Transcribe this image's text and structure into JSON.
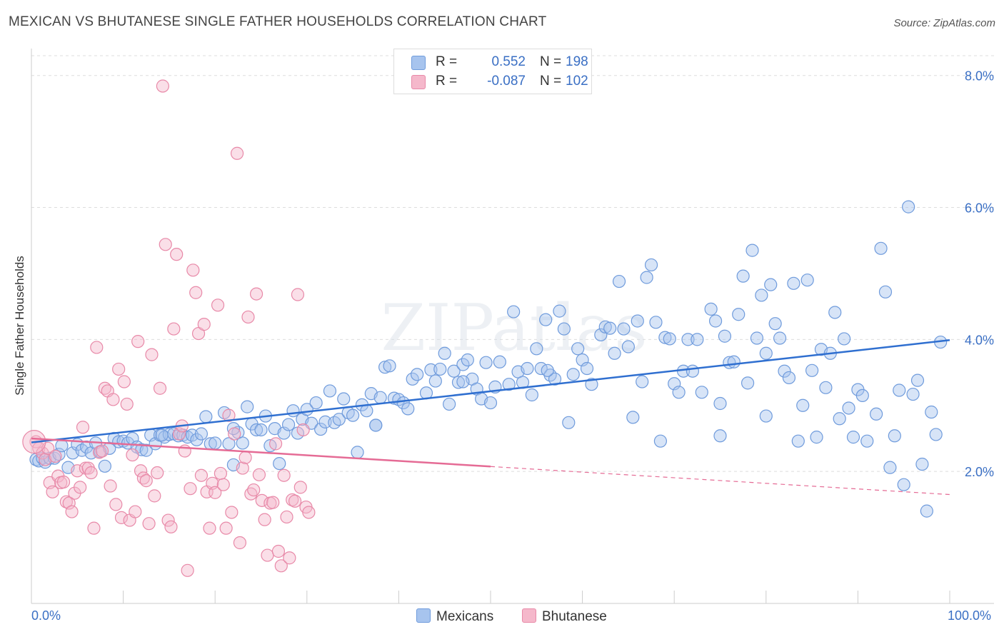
{
  "header": {
    "title": "MEXICAN VS BHUTANESE SINGLE FATHER HOUSEHOLDS CORRELATION CHART",
    "source": "Source: ZipAtlas.com"
  },
  "legend_top": [
    {
      "r_label": "R =",
      "r_value": "0.552",
      "n_label": "N =",
      "n_value": "198",
      "color": "#a7c4ee"
    },
    {
      "r_label": "R =",
      "r_value": "-0.087",
      "n_label": "N =",
      "n_value": "102",
      "color": "#f5b8cb"
    }
  ],
  "legend_bottom": [
    {
      "label": "Mexicans",
      "color": "#a7c4ee"
    },
    {
      "label": "Bhutanese",
      "color": "#f5b8cb"
    }
  ],
  "colors": {
    "blue_fill": "#a7c4ee",
    "blue_stroke": "#6f9bdc",
    "blue_line": "#2f6fd0",
    "pink_fill": "#f5b8cb",
    "pink_stroke": "#e889a8",
    "pink_line": "#e56b95",
    "tick_text": "#3a6fc4",
    "grid": "#dddddd"
  },
  "chart_data": {
    "type": "scatter",
    "title": "MEXICAN VS BHUTANESE SINGLE FATHER HOUSEHOLDS CORRELATION CHART",
    "xlabel": "",
    "ylabel": "Single Father Households",
    "xlim": [
      0,
      100
    ],
    "ylim": [
      0,
      8.3
    ],
    "x_tick_labels": [
      "0.0%",
      "100.0%"
    ],
    "y_ticks": [
      2,
      4,
      6,
      8
    ],
    "y_tick_labels": [
      "2.0%",
      "4.0%",
      "6.0%",
      "8.0%"
    ],
    "grid": true,
    "watermark": "ZIPatlas",
    "series": [
      {
        "name": "Mexicans",
        "trend": {
          "x0": 0,
          "y0": 2.44,
          "x1": 100,
          "y1": 3.99
        },
        "points": [
          [
            0.5,
            2.18
          ],
          [
            0.8,
            2.16
          ],
          [
            1.2,
            2.2
          ],
          [
            1.5,
            2.14
          ],
          [
            2.0,
            2.2
          ],
          [
            2.5,
            2.2
          ],
          [
            3.0,
            2.26
          ],
          [
            3.3,
            2.39
          ],
          [
            4.0,
            2.06
          ],
          [
            4.5,
            2.28
          ],
          [
            5.0,
            2.41
          ],
          [
            5.5,
            2.32
          ],
          [
            6.0,
            2.37
          ],
          [
            6.5,
            2.28
          ],
          [
            7.0,
            2.43
          ],
          [
            7.5,
            2.3
          ],
          [
            8.0,
            2.08
          ],
          [
            8.5,
            2.35
          ],
          [
            9.0,
            2.5
          ],
          [
            9.5,
            2.45
          ],
          [
            10.0,
            2.46
          ],
          [
            10.5,
            2.43
          ],
          [
            11.0,
            2.5
          ],
          [
            11.5,
            2.37
          ],
          [
            12.0,
            2.33
          ],
          [
            12.5,
            2.32
          ],
          [
            13.0,
            2.55
          ],
          [
            13.5,
            2.42
          ],
          [
            14.0,
            2.55
          ],
          [
            14.5,
            2.52
          ],
          [
            15.0,
            2.56
          ],
          [
            15.5,
            2.57
          ],
          [
            16.0,
            2.54
          ],
          [
            16.5,
            2.55
          ],
          [
            17.0,
            2.52
          ],
          [
            17.5,
            2.55
          ],
          [
            18.0,
            2.48
          ],
          [
            18.5,
            2.57
          ],
          [
            19.0,
            2.83
          ],
          [
            19.5,
            2.42
          ],
          [
            20.0,
            2.43
          ],
          [
            21.0,
            2.89
          ],
          [
            21.5,
            2.42
          ],
          [
            22.0,
            2.1
          ],
          [
            22.5,
            2.59
          ],
          [
            23.0,
            2.43
          ],
          [
            23.5,
            2.98
          ],
          [
            24.0,
            2.72
          ],
          [
            24.5,
            2.63
          ],
          [
            25.0,
            2.63
          ],
          [
            25.5,
            2.84
          ],
          [
            26.0,
            2.39
          ],
          [
            26.5,
            2.65
          ],
          [
            27.0,
            2.12
          ],
          [
            27.5,
            2.58
          ],
          [
            28.0,
            2.71
          ],
          [
            28.5,
            2.92
          ],
          [
            29.0,
            2.58
          ],
          [
            29.5,
            2.79
          ],
          [
            30.0,
            2.94
          ],
          [
            30.5,
            2.73
          ],
          [
            31.0,
            3.04
          ],
          [
            31.5,
            2.64
          ],
          [
            32.0,
            2.75
          ],
          [
            32.5,
            3.22
          ],
          [
            33.0,
            2.74
          ],
          [
            33.5,
            2.79
          ],
          [
            34.0,
            3.1
          ],
          [
            34.5,
            2.89
          ],
          [
            35.0,
            2.85
          ],
          [
            35.5,
            2.29
          ],
          [
            36.0,
            3.01
          ],
          [
            36.5,
            2.92
          ],
          [
            37.0,
            3.18
          ],
          [
            37.5,
            2.7
          ],
          [
            38.0,
            3.12
          ],
          [
            38.5,
            3.58
          ],
          [
            39.0,
            3.6
          ],
          [
            39.5,
            3.11
          ],
          [
            40.0,
            3.09
          ],
          [
            40.5,
            3.04
          ],
          [
            41.0,
            2.95
          ],
          [
            41.5,
            3.4
          ],
          [
            42.0,
            3.47
          ],
          [
            43.0,
            3.19
          ],
          [
            43.5,
            3.54
          ],
          [
            44.0,
            3.37
          ],
          [
            44.5,
            3.55
          ],
          [
            45.0,
            3.79
          ],
          [
            45.5,
            3.02
          ],
          [
            46.0,
            3.52
          ],
          [
            46.5,
            3.35
          ],
          [
            47.0,
            3.62
          ],
          [
            47.5,
            3.69
          ],
          [
            48.0,
            3.4
          ],
          [
            48.5,
            3.25
          ],
          [
            49.0,
            3.1
          ],
          [
            49.5,
            3.65
          ],
          [
            50.0,
            3.04
          ],
          [
            50.5,
            3.28
          ],
          [
            51.0,
            3.66
          ],
          [
            52.0,
            3.32
          ],
          [
            52.5,
            4.42
          ],
          [
            53.0,
            3.51
          ],
          [
            53.5,
            3.35
          ],
          [
            54.0,
            3.56
          ],
          [
            54.5,
            3.16
          ],
          [
            55.0,
            3.86
          ],
          [
            55.5,
            3.56
          ],
          [
            56.0,
            4.3
          ],
          [
            56.5,
            3.46
          ],
          [
            57.0,
            3.4
          ],
          [
            57.5,
            4.43
          ],
          [
            58.0,
            4.16
          ],
          [
            58.5,
            2.74
          ],
          [
            59.0,
            3.47
          ],
          [
            59.5,
            3.86
          ],
          [
            60.0,
            3.69
          ],
          [
            60.5,
            3.56
          ],
          [
            61.0,
            3.32
          ],
          [
            62.0,
            4.07
          ],
          [
            62.5,
            4.19
          ],
          [
            63.0,
            4.17
          ],
          [
            63.5,
            3.79
          ],
          [
            64.0,
            4.88
          ],
          [
            64.5,
            4.16
          ],
          [
            65.0,
            3.89
          ],
          [
            65.5,
            2.82
          ],
          [
            66.0,
            4.28
          ],
          [
            66.5,
            3.36
          ],
          [
            67.0,
            4.94
          ],
          [
            67.5,
            5.13
          ],
          [
            68.0,
            4.26
          ],
          [
            68.5,
            2.46
          ],
          [
            69.0,
            4.03
          ],
          [
            69.5,
            4.01
          ],
          [
            70.0,
            3.33
          ],
          [
            70.5,
            3.2
          ],
          [
            71.0,
            3.52
          ],
          [
            71.5,
            4.0
          ],
          [
            72.0,
            3.52
          ],
          [
            72.5,
            4.0
          ],
          [
            73.0,
            3.2
          ],
          [
            74.0,
            4.46
          ],
          [
            74.5,
            4.28
          ],
          [
            75.0,
            3.03
          ],
          [
            75.5,
            4.05
          ],
          [
            76.0,
            3.65
          ],
          [
            76.5,
            3.66
          ],
          [
            77.0,
            4.38
          ],
          [
            77.5,
            4.96
          ],
          [
            78.0,
            3.34
          ],
          [
            78.5,
            5.35
          ],
          [
            79.0,
            4.02
          ],
          [
            79.5,
            4.67
          ],
          [
            80.0,
            3.79
          ],
          [
            80.5,
            4.83
          ],
          [
            81.0,
            4.24
          ],
          [
            81.5,
            4.02
          ],
          [
            82.0,
            3.52
          ],
          [
            82.5,
            3.42
          ],
          [
            83.0,
            4.85
          ],
          [
            83.5,
            2.46
          ],
          [
            84.0,
            3.0
          ],
          [
            84.5,
            4.9
          ],
          [
            85.0,
            3.53
          ],
          [
            85.5,
            2.52
          ],
          [
            86.0,
            3.85
          ],
          [
            86.5,
            3.27
          ],
          [
            87.0,
            3.79
          ],
          [
            87.5,
            4.41
          ],
          [
            88.0,
            2.8
          ],
          [
            88.5,
            4.01
          ],
          [
            89.0,
            2.96
          ],
          [
            89.5,
            2.52
          ],
          [
            90.0,
            3.24
          ],
          [
            90.5,
            3.15
          ],
          [
            91.0,
            2.46
          ],
          [
            92.0,
            2.87
          ],
          [
            92.5,
            5.38
          ],
          [
            93.0,
            4.72
          ],
          [
            93.5,
            2.06
          ],
          [
            94.0,
            2.54
          ],
          [
            94.5,
            3.23
          ],
          [
            95.0,
            1.8
          ],
          [
            95.5,
            6.01
          ],
          [
            96.0,
            3.17
          ],
          [
            96.5,
            3.38
          ],
          [
            97.0,
            2.11
          ],
          [
            97.5,
            1.4
          ],
          [
            98.0,
            2.9
          ],
          [
            98.5,
            2.56
          ],
          [
            99.0,
            3.96
          ],
          [
            14.2,
            2.55
          ],
          [
            22.0,
            2.65
          ],
          [
            37.5,
            2.7
          ],
          [
            56.2,
            3.53
          ],
          [
            75.0,
            2.54
          ],
          [
            80.0,
            2.84
          ],
          [
            47.0,
            3.36
          ]
        ]
      },
      {
        "name": "Bhutanese",
        "trend": {
          "x0": 0,
          "y0": 2.5,
          "x1": 100,
          "y1": 1.65,
          "solid_until": 50
        },
        "points": [
          [
            0.5,
            2.45
          ],
          [
            0.8,
            2.35
          ],
          [
            1.2,
            2.28
          ],
          [
            1.5,
            2.18
          ],
          [
            1.8,
            2.35
          ],
          [
            2.0,
            1.83
          ],
          [
            2.3,
            1.69
          ],
          [
            2.6,
            2.23
          ],
          [
            2.9,
            1.93
          ],
          [
            3.2,
            1.83
          ],
          [
            3.5,
            1.84
          ],
          [
            3.8,
            1.54
          ],
          [
            4.1,
            1.52
          ],
          [
            4.4,
            1.39
          ],
          [
            4.7,
            1.67
          ],
          [
            5.0,
            2.01
          ],
          [
            5.3,
            1.76
          ],
          [
            5.6,
            2.67
          ],
          [
            5.9,
            2.05
          ],
          [
            6.2,
            2.05
          ],
          [
            6.5,
            1.98
          ],
          [
            6.8,
            1.14
          ],
          [
            7.1,
            3.88
          ],
          [
            7.4,
            2.29
          ],
          [
            7.7,
            2.31
          ],
          [
            8.0,
            3.26
          ],
          [
            8.3,
            3.22
          ],
          [
            8.6,
            1.78
          ],
          [
            8.9,
            3.09
          ],
          [
            9.2,
            1.5
          ],
          [
            9.5,
            3.55
          ],
          [
            9.8,
            1.3
          ],
          [
            10.1,
            3.36
          ],
          [
            10.4,
            3.02
          ],
          [
            10.7,
            1.26
          ],
          [
            11.0,
            2.25
          ],
          [
            11.3,
            1.39
          ],
          [
            11.6,
            3.97
          ],
          [
            11.9,
            2.01
          ],
          [
            12.2,
            1.9
          ],
          [
            12.5,
            1.86
          ],
          [
            12.8,
            1.21
          ],
          [
            13.1,
            3.77
          ],
          [
            13.4,
            1.63
          ],
          [
            13.7,
            1.98
          ],
          [
            14.0,
            3.26
          ],
          [
            14.3,
            7.84
          ],
          [
            14.6,
            5.44
          ],
          [
            14.9,
            1.26
          ],
          [
            15.2,
            1.16
          ],
          [
            15.5,
            4.16
          ],
          [
            15.8,
            5.29
          ],
          [
            16.1,
            2.57
          ],
          [
            16.4,
            2.69
          ],
          [
            16.7,
            2.31
          ],
          [
            17.0,
            0.5
          ],
          [
            17.3,
            1.74
          ],
          [
            17.6,
            5.05
          ],
          [
            17.9,
            4.71
          ],
          [
            18.2,
            4.09
          ],
          [
            18.5,
            1.94
          ],
          [
            18.8,
            4.23
          ],
          [
            19.1,
            1.69
          ],
          [
            19.4,
            1.14
          ],
          [
            19.7,
            1.82
          ],
          [
            20.0,
            1.68
          ],
          [
            20.3,
            4.52
          ],
          [
            20.6,
            1.97
          ],
          [
            20.9,
            1.8
          ],
          [
            21.2,
            1.14
          ],
          [
            21.5,
            2.85
          ],
          [
            21.8,
            1.38
          ],
          [
            22.1,
            2.57
          ],
          [
            22.4,
            6.82
          ],
          [
            22.7,
            0.92
          ],
          [
            23.0,
            2.05
          ],
          [
            23.3,
            2.21
          ],
          [
            23.6,
            4.34
          ],
          [
            23.9,
            1.66
          ],
          [
            24.2,
            1.72
          ],
          [
            24.5,
            4.69
          ],
          [
            24.8,
            1.95
          ],
          [
            25.1,
            1.56
          ],
          [
            25.4,
            1.27
          ],
          [
            25.7,
            0.73
          ],
          [
            26.0,
            1.52
          ],
          [
            26.3,
            1.53
          ],
          [
            26.6,
            2.42
          ],
          [
            26.9,
            0.79
          ],
          [
            27.2,
            0.57
          ],
          [
            27.5,
            1.94
          ],
          [
            27.8,
            1.31
          ],
          [
            28.1,
            0.69
          ],
          [
            28.4,
            1.57
          ],
          [
            28.7,
            1.55
          ],
          [
            29.0,
            4.68
          ],
          [
            29.3,
            1.76
          ],
          [
            29.6,
            2.63
          ],
          [
            29.9,
            1.46
          ],
          [
            30.2,
            1.38
          ]
        ]
      }
    ]
  }
}
